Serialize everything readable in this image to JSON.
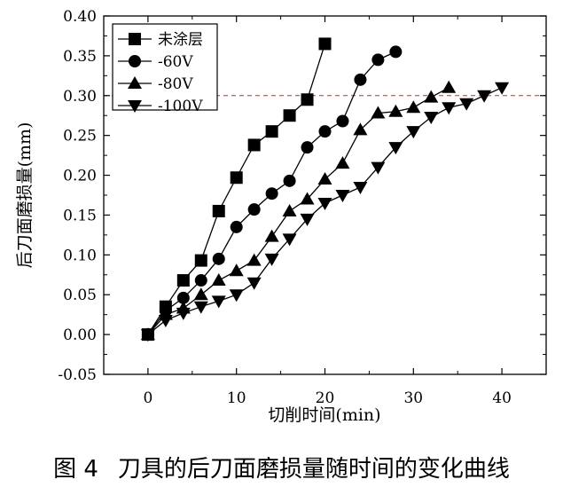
{
  "chart_data": {
    "type": "line",
    "xlabel": "切削时间(min)",
    "ylabel": "后刀面磨损量(mm)",
    "xlim": [
      -5,
      45
    ],
    "ylim": [
      -0.05,
      0.4
    ],
    "xticks": [
      "0",
      "10",
      "20",
      "30",
      "40"
    ],
    "yticks": [
      "-0.05",
      "0.00",
      "0.05",
      "0.10",
      "0.15",
      "0.20",
      "0.25",
      "0.30",
      "0.35",
      "0.40"
    ],
    "legend_position": "top-left",
    "reference_line": {
      "y": 0.3,
      "style": "dashed",
      "color": "#e02020"
    },
    "series": [
      {
        "name": "未涂层",
        "marker": "square",
        "x": [
          0,
          2,
          4,
          6,
          8,
          10,
          12,
          14,
          16,
          18,
          20
        ],
        "y": [
          0.0,
          0.035,
          0.068,
          0.093,
          0.155,
          0.197,
          0.238,
          0.255,
          0.275,
          0.295,
          0.365
        ]
      },
      {
        "name": "-60V",
        "marker": "circle",
        "x": [
          0,
          2,
          4,
          6,
          8,
          10,
          12,
          14,
          16,
          18,
          20,
          22,
          24,
          26,
          28
        ],
        "y": [
          0.0,
          0.03,
          0.046,
          0.068,
          0.095,
          0.135,
          0.157,
          0.177,
          0.193,
          0.235,
          0.255,
          0.268,
          0.32,
          0.345,
          0.355
        ]
      },
      {
        "name": "-80V",
        "marker": "triangle-up",
        "x": [
          0,
          2,
          4,
          6,
          8,
          10,
          12,
          14,
          16,
          18,
          20,
          22,
          24,
          26,
          28,
          30,
          32,
          34
        ],
        "y": [
          0.0,
          0.025,
          0.033,
          0.05,
          0.068,
          0.08,
          0.093,
          0.123,
          0.155,
          0.17,
          0.195,
          0.215,
          0.257,
          0.278,
          0.28,
          0.285,
          0.298,
          0.31
        ]
      },
      {
        "name": "-100V",
        "marker": "triangle-down",
        "x": [
          0,
          2,
          4,
          6,
          8,
          10,
          12,
          14,
          16,
          18,
          20,
          22,
          24,
          26,
          28,
          30,
          32,
          34,
          36,
          38,
          40
        ],
        "y": [
          0.0,
          0.018,
          0.027,
          0.035,
          0.042,
          0.05,
          0.065,
          0.095,
          0.12,
          0.145,
          0.165,
          0.175,
          0.185,
          0.21,
          0.235,
          0.255,
          0.273,
          0.285,
          0.29,
          0.3,
          0.31
        ]
      }
    ]
  },
  "caption": {
    "number": "图 4",
    "text": "刀具的后刀面磨损量随时间的变化曲线"
  }
}
